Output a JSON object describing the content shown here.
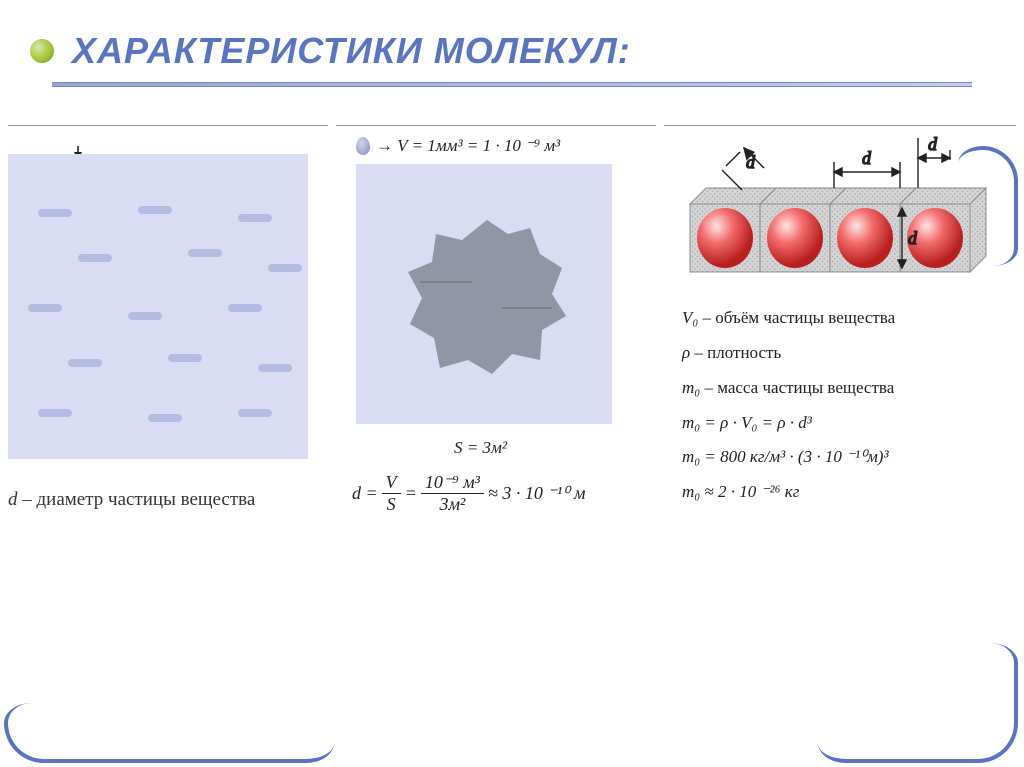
{
  "slide": {
    "title": "ХАРАКТЕРИСТИКИ МОЛЕКУЛ:",
    "accent_color": "#5a73c2",
    "bullet_gradient": [
      "#d9e8a9",
      "#a3c636",
      "#6a8f1b"
    ]
  },
  "panel1": {
    "type": "diagram",
    "background_color": "#d9dcf3",
    "wavelet_color": "#b5bce2",
    "bead_color_stops": [
      "#8cb8f4",
      "#2a5dd6",
      "#12349c"
    ],
    "bead_count": 16,
    "dim_label": "d",
    "caption_var": "d",
    "caption_text": " – диаметр частицы вещества"
  },
  "panel2": {
    "type": "diagram",
    "top_formula": "→ V = 1мм³  =  1 · 10 ⁻⁹ м³",
    "square_bg": "#d9dcf3",
    "slick_color": "#8a8f9e",
    "area_label": "S = 3м²",
    "formula_prefix": "d = ",
    "frac1_top": "V",
    "frac1_bot": "S",
    "eq": " = ",
    "frac2_top": "10⁻⁹ м³",
    "frac2_bot": "3м²",
    "approx": " ≈  3 · 10 ⁻¹⁰ м"
  },
  "panel3": {
    "type": "diagram",
    "cube_fill": "#d4d4d4",
    "cube_stroke": "#8a8a8a",
    "sphere_stops": [
      "#ffe4e4",
      "#f26a6a",
      "#b81f1f"
    ],
    "dim_label": "d",
    "lines": {
      "l1_var": "V₀",
      "l1_rest": " – объём частицы вещества",
      "l2_var": "ρ",
      "l2_rest": " – плотность",
      "l3_var": "m₀",
      "l3_rest": " – масса частицы вещества",
      "l4": "m₀ = ρ · V₀ = ρ · d³",
      "l5": "m₀ = 800 кг/м³ · (3 · 10 ⁻¹⁰м)³",
      "l6": "m₀  ≈  2 · 10 ⁻²⁶ кг"
    }
  }
}
